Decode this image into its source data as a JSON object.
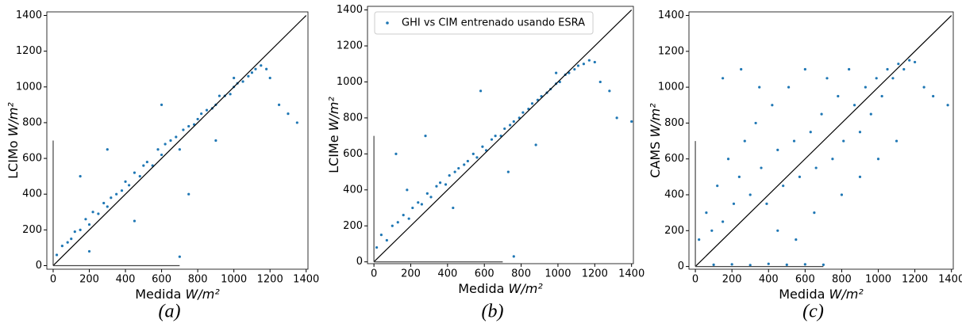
{
  "chart_data": [
    {
      "type": "scatter",
      "caption": "(a)",
      "xlabel": "Medida",
      "xunit": "W/m²",
      "ylabel": "LCIMo",
      "yunit": "W/m²",
      "xlim": [
        -35,
        1410
      ],
      "ylim": [
        -20,
        1420
      ],
      "xticks": [
        0,
        200,
        400,
        600,
        800,
        1000,
        1200,
        1400
      ],
      "yticks": [
        0,
        200,
        400,
        600,
        800,
        1000,
        1200,
        1400
      ],
      "series": [
        {
          "color": "#1f77b4",
          "style": "points",
          "x": [
            20,
            50,
            80,
            100,
            120,
            150,
            180,
            200,
            220,
            250,
            280,
            300,
            320,
            350,
            380,
            400,
            420,
            450,
            480,
            500,
            520,
            550,
            580,
            600,
            620,
            650,
            680,
            700,
            720,
            750,
            780,
            800,
            820,
            850,
            880,
            900,
            920,
            950,
            980,
            1000,
            1020,
            1050,
            1080,
            1100,
            1120,
            1150,
            1180,
            1200,
            1250,
            1300,
            1350,
            150,
            300,
            450,
            600,
            750,
            900,
            1000,
            200,
            700
          ],
          "values": [
            60,
            110,
            130,
            150,
            190,
            200,
            260,
            230,
            300,
            290,
            350,
            330,
            380,
            400,
            420,
            470,
            450,
            520,
            500,
            560,
            580,
            560,
            650,
            620,
            680,
            700,
            720,
            650,
            760,
            780,
            790,
            820,
            850,
            870,
            880,
            900,
            950,
            950,
            960,
            1000,
            1020,
            1030,
            1060,
            1080,
            1100,
            1120,
            1100,
            1050,
            900,
            850,
            800,
            500,
            650,
            250,
            900,
            400,
            700,
            1050,
            80,
            50
          ]
        },
        {
          "color": "#000000",
          "style": "line",
          "x": [
            0,
            1400
          ],
          "values": [
            0,
            1400
          ]
        },
        {
          "color": "#444444",
          "style": "line",
          "x": [
            0,
            0
          ],
          "values": [
            0,
            700
          ]
        },
        {
          "color": "#444444",
          "style": "line",
          "x": [
            0,
            700
          ],
          "values": [
            0,
            0
          ]
        }
      ]
    },
    {
      "type": "scatter",
      "caption": "(b)",
      "xlabel": "Medida",
      "xunit": "W/m²",
      "ylabel": "LCIMe",
      "yunit": "W/m²",
      "xlim": [
        -35,
        1410
      ],
      "ylim": [
        -10,
        1420
      ],
      "legend": "upper left",
      "xticks": [
        0,
        200,
        400,
        600,
        800,
        1000,
        1200,
        1400
      ],
      "yticks": [
        0,
        200,
        400,
        600,
        800,
        1000,
        1200,
        1400
      ],
      "series": [
        {
          "name": "GHI vs CIM entrenado usando ESRA",
          "color": "#1f77b4",
          "style": "points",
          "x": [
            15,
            40,
            70,
            100,
            130,
            160,
            190,
            210,
            240,
            260,
            290,
            310,
            340,
            360,
            390,
            410,
            440,
            460,
            490,
            510,
            540,
            560,
            590,
            610,
            640,
            660,
            690,
            710,
            740,
            760,
            790,
            810,
            840,
            860,
            890,
            910,
            940,
            960,
            990,
            1010,
            1040,
            1060,
            1090,
            1110,
            1140,
            1170,
            1200,
            1230,
            1280,
            1320,
            1400,
            120,
            280,
            430,
            580,
            730,
            880,
            990,
            180,
            760
          ],
          "values": [
            80,
            150,
            120,
            200,
            220,
            260,
            240,
            300,
            330,
            320,
            380,
            360,
            420,
            440,
            430,
            480,
            500,
            520,
            540,
            560,
            600,
            580,
            640,
            620,
            680,
            700,
            700,
            740,
            760,
            780,
            800,
            830,
            850,
            880,
            900,
            920,
            940,
            960,
            990,
            1000,
            1040,
            1050,
            1070,
            1090,
            1100,
            1120,
            1110,
            1000,
            950,
            800,
            780,
            600,
            700,
            300,
            950,
            500,
            650,
            1050,
            400,
            30
          ]
        },
        {
          "color": "#000000",
          "style": "line",
          "x": [
            0,
            1400
          ],
          "values": [
            0,
            1400
          ]
        },
        {
          "color": "#444444",
          "style": "line",
          "x": [
            0,
            0
          ],
          "values": [
            0,
            700
          ]
        },
        {
          "color": "#444444",
          "style": "line",
          "x": [
            0,
            700
          ],
          "values": [
            0,
            0
          ]
        }
      ]
    },
    {
      "type": "scatter",
      "caption": "(c)",
      "xlabel": "Medida",
      "xunit": "W/m²",
      "ylabel": "CAMS",
      "yunit": "W/m²",
      "xlim": [
        -35,
        1410
      ],
      "ylim": [
        -15,
        1420
      ],
      "xticks": [
        0,
        200,
        400,
        600,
        800,
        1000,
        1200,
        1400
      ],
      "yticks": [
        0,
        200,
        400,
        600,
        800,
        1000,
        1200,
        1400
      ],
      "series": [
        {
          "color": "#1f77b4",
          "style": "points",
          "x": [
            20,
            60,
            90,
            120,
            150,
            180,
            210,
            240,
            270,
            300,
            330,
            360,
            390,
            420,
            450,
            480,
            510,
            540,
            570,
            600,
            630,
            660,
            690,
            720,
            750,
            780,
            810,
            840,
            870,
            900,
            930,
            960,
            990,
            1020,
            1050,
            1080,
            1110,
            1140,
            1170,
            1200,
            1250,
            1300,
            1380,
            100,
            200,
            300,
            400,
            500,
            600,
            700,
            150,
            250,
            350,
            450,
            550,
            650,
            800,
            900,
            1000,
            1100
          ],
          "values": [
            150,
            300,
            200,
            450,
            250,
            600,
            350,
            500,
            700,
            400,
            800,
            550,
            350,
            900,
            650,
            450,
            1000,
            700,
            500,
            1100,
            750,
            550,
            850,
            1050,
            600,
            950,
            700,
            1100,
            900,
            750,
            1000,
            850,
            1050,
            950,
            1100,
            1050,
            1130,
            1100,
            1150,
            1140,
            1000,
            950,
            900,
            10,
            12,
            8,
            15,
            10,
            12,
            10,
            1050,
            1100,
            1000,
            200,
            150,
            300,
            400,
            500,
            600,
            700
          ]
        },
        {
          "color": "#000000",
          "style": "line",
          "x": [
            0,
            1400
          ],
          "values": [
            0,
            1400
          ]
        },
        {
          "color": "#444444",
          "style": "line",
          "x": [
            0,
            0
          ],
          "values": [
            0,
            700
          ]
        },
        {
          "color": "#444444",
          "style": "line",
          "x": [
            0,
            700
          ],
          "values": [
            0,
            0
          ]
        }
      ]
    }
  ]
}
